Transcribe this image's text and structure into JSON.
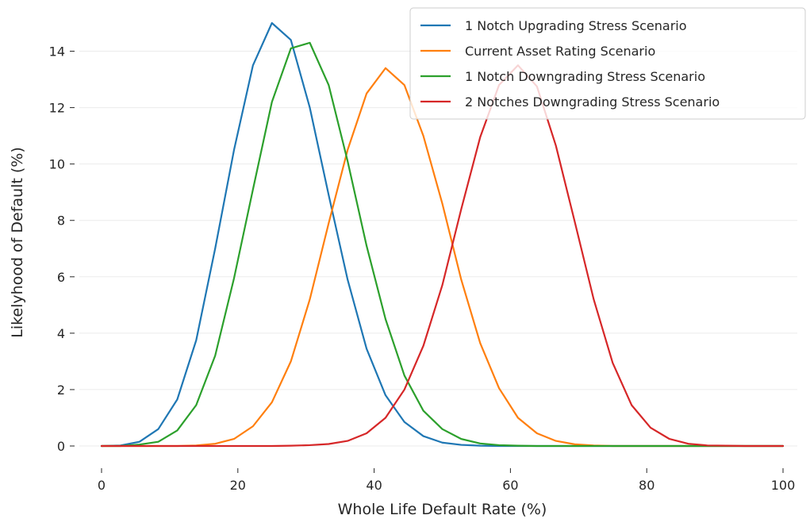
{
  "chart_data": {
    "type": "line",
    "title": "",
    "xlabel": "Whole Life Default Rate (%)",
    "ylabel": "Likelyhood of Default (%)",
    "xlim": [
      0,
      100
    ],
    "ylim": [
      0,
      15
    ],
    "xticks": [
      0,
      20,
      40,
      60,
      80,
      100
    ],
    "yticks": [
      0,
      2,
      4,
      6,
      8,
      10,
      12,
      14
    ],
    "grid": "horizontal",
    "legend_position": "top-right",
    "x": [
      0,
      2.78,
      5.56,
      8.33,
      11.11,
      13.89,
      16.67,
      19.44,
      22.22,
      25,
      27.78,
      30.56,
      33.33,
      36.11,
      38.89,
      41.67,
      44.44,
      47.22,
      50,
      52.78,
      55.56,
      58.33,
      61.11,
      63.89,
      66.67,
      69.44,
      72.22,
      75,
      77.78,
      80.56,
      83.33,
      86.11,
      88.89,
      91.67,
      94.44,
      97.22,
      100
    ],
    "series": [
      {
        "name": "1 Notch Upgrading Stress Scenario",
        "color": "#1f77b4",
        "values": [
          0,
          0.02,
          0.15,
          0.6,
          1.65,
          3.75,
          7,
          10.5,
          13.5,
          15,
          14.4,
          12,
          8.9,
          5.9,
          3.45,
          1.8,
          0.85,
          0.35,
          0.12,
          0.04,
          0.01,
          0,
          0,
          0,
          0,
          0,
          0,
          0,
          0,
          0,
          0,
          0,
          0,
          0,
          0,
          0,
          0
        ]
      },
      {
        "name": "Current Asset Rating Scenario",
        "color": "#ff7f0e",
        "values": [
          0,
          0,
          0,
          0,
          0,
          0.02,
          0.08,
          0.25,
          0.7,
          1.55,
          3,
          5.2,
          7.9,
          10.5,
          12.5,
          13.4,
          12.8,
          11,
          8.6,
          5.9,
          3.65,
          2.05,
          1,
          0.45,
          0.18,
          0.06,
          0.02,
          0,
          0,
          0,
          0,
          0,
          0,
          0,
          0,
          0,
          0
        ]
      },
      {
        "name": "1 Notch Downgrading Stress Scenario",
        "color": "#2ca02c",
        "values": [
          0,
          0,
          0.05,
          0.15,
          0.55,
          1.45,
          3.2,
          5.95,
          9.1,
          12.2,
          14.1,
          14.3,
          12.8,
          10.1,
          7.1,
          4.5,
          2.5,
          1.25,
          0.6,
          0.25,
          0.09,
          0.03,
          0.01,
          0,
          0,
          0,
          0,
          0,
          0,
          0,
          0,
          0,
          0,
          0,
          0,
          0,
          0
        ]
      },
      {
        "name": "2 Notches Downgrading Stress Scenario",
        "color": "#d62728",
        "values": [
          0,
          0,
          0,
          0,
          0,
          0,
          0,
          0,
          0,
          0,
          0.01,
          0.03,
          0.07,
          0.18,
          0.45,
          1,
          2,
          3.55,
          5.7,
          8.4,
          10.95,
          12.8,
          13.5,
          12.75,
          10.65,
          7.95,
          5.2,
          2.95,
          1.45,
          0.65,
          0.25,
          0.08,
          0.02,
          0.01,
          0,
          0,
          0
        ]
      }
    ]
  }
}
